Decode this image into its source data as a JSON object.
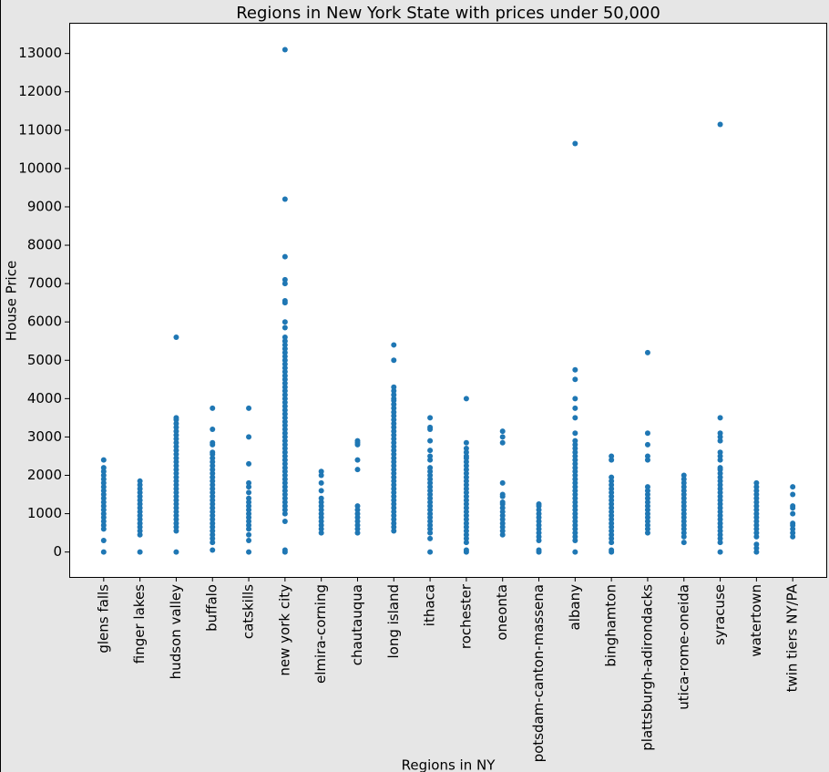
{
  "chart_data": {
    "type": "scatter",
    "title": "Regions in New York State with prices under 50,000",
    "x_label": "Regions in NY",
    "y_label": "House Price",
    "color": "#1f77b4",
    "categories": [
      "glens falls",
      "finger lakes",
      "hudson valley",
      "buffalo",
      "catskills",
      "new york city",
      "elmira-corning",
      "chautauqua",
      "long island",
      "ithaca",
      "rochester",
      "oneonta",
      "potsdam-canton-massena",
      "albany",
      "binghamton",
      "plattsburgh-adirondacks",
      "utica-rome-oneida",
      "syracuse",
      "watertown",
      "twin tiers NY/PA"
    ],
    "values": [
      [
        0,
        300,
        600,
        700,
        800,
        900,
        1000,
        1100,
        1200,
        1300,
        1400,
        1500,
        1600,
        1700,
        1800,
        1900,
        2000,
        2100,
        2200,
        2400
      ],
      [
        0,
        450,
        550,
        650,
        750,
        850,
        950,
        1050,
        1150,
        1250,
        1350,
        1450,
        1550,
        1650,
        1750,
        1850
      ],
      [
        0,
        550,
        650,
        750,
        850,
        950,
        1050,
        1150,
        1250,
        1350,
        1450,
        1550,
        1650,
        1750,
        1850,
        1950,
        2050,
        2150,
        2250,
        2350,
        2450,
        2550,
        2650,
        2750,
        2850,
        2950,
        3050,
        3150,
        3250,
        3350,
        3450,
        3500,
        5600
      ],
      [
        50,
        250,
        350,
        450,
        550,
        650,
        750,
        850,
        950,
        1050,
        1150,
        1250,
        1350,
        1450,
        1550,
        1650,
        1750,
        1850,
        1950,
        2050,
        2150,
        2250,
        2350,
        2450,
        2550,
        2600,
        2800,
        2850,
        3200,
        3750
      ],
      [
        0,
        300,
        450,
        600,
        700,
        800,
        900,
        1000,
        1100,
        1200,
        1300,
        1400,
        1550,
        1700,
        1800,
        2300,
        3000,
        3750
      ],
      [
        0,
        50,
        800,
        1000,
        1100,
        1200,
        1300,
        1400,
        1500,
        1600,
        1700,
        1800,
        1900,
        2000,
        2100,
        2200,
        2300,
        2400,
        2500,
        2600,
        2700,
        2800,
        2900,
        3000,
        3100,
        3200,
        3300,
        3400,
        3500,
        3600,
        3700,
        3800,
        3900,
        4000,
        4100,
        4200,
        4300,
        4400,
        4500,
        4600,
        4700,
        4800,
        4900,
        5000,
        5100,
        5200,
        5300,
        5400,
        5500,
        5600,
        5850,
        6000,
        6500,
        6550,
        7000,
        7100,
        7700,
        9200,
        13100
      ],
      [
        500,
        600,
        700,
        800,
        900,
        1000,
        1100,
        1200,
        1300,
        1400,
        1600,
        1800,
        2000,
        2100
      ],
      [
        500,
        600,
        700,
        800,
        900,
        1000,
        1100,
        1200,
        2150,
        2400,
        2800,
        2850,
        2900
      ],
      [
        550,
        650,
        750,
        850,
        950,
        1050,
        1150,
        1250,
        1350,
        1450,
        1550,
        1650,
        1750,
        1850,
        1950,
        2050,
        2150,
        2250,
        2350,
        2450,
        2550,
        2650,
        2750,
        2850,
        2950,
        3050,
        3150,
        3250,
        3350,
        3450,
        3550,
        3650,
        3750,
        3850,
        3950,
        4000,
        4100,
        4200,
        4300,
        5000,
        5400
      ],
      [
        0,
        350,
        500,
        600,
        700,
        800,
        900,
        1000,
        1100,
        1200,
        1300,
        1400,
        1500,
        1600,
        1700,
        1800,
        1900,
        2000,
        2100,
        2200,
        2400,
        2500,
        2650,
        2900,
        3200,
        3250,
        3500
      ],
      [
        0,
        50,
        250,
        350,
        450,
        550,
        650,
        750,
        850,
        950,
        1050,
        1150,
        1250,
        1350,
        1450,
        1550,
        1650,
        1750,
        1850,
        1950,
        2050,
        2150,
        2250,
        2350,
        2450,
        2500,
        2600,
        2700,
        2850,
        4000
      ],
      [
        450,
        550,
        650,
        750,
        850,
        950,
        1050,
        1150,
        1250,
        1300,
        1450,
        1500,
        1800,
        2850,
        3000,
        3150
      ],
      [
        0,
        50,
        300,
        400,
        500,
        600,
        700,
        800,
        900,
        1000,
        1100,
        1200,
        1250
      ],
      [
        0,
        300,
        400,
        500,
        600,
        700,
        800,
        900,
        1000,
        1100,
        1200,
        1300,
        1400,
        1500,
        1600,
        1700,
        1800,
        1900,
        2000,
        2100,
        2200,
        2300,
        2400,
        2500,
        2600,
        2700,
        2800,
        2900,
        3100,
        3500,
        3750,
        4000,
        4500,
        4750,
        10650
      ],
      [
        0,
        50,
        250,
        350,
        450,
        550,
        650,
        750,
        850,
        950,
        1050,
        1150,
        1250,
        1350,
        1450,
        1550,
        1650,
        1750,
        1850,
        1950,
        2400,
        2500
      ],
      [
        500,
        600,
        700,
        800,
        900,
        1000,
        1100,
        1200,
        1300,
        1400,
        1500,
        1600,
        1700,
        2400,
        2500,
        2800,
        3100,
        5200
      ],
      [
        250,
        400,
        500,
        600,
        700,
        800,
        900,
        1000,
        1100,
        1200,
        1300,
        1400,
        1500,
        1600,
        1700,
        1800,
        1900,
        2000
      ],
      [
        0,
        250,
        350,
        450,
        550,
        650,
        750,
        850,
        950,
        1050,
        1150,
        1250,
        1350,
        1450,
        1550,
        1650,
        1750,
        1850,
        1950,
        2050,
        2150,
        2200,
        2400,
        2500,
        2600,
        2900,
        3000,
        3100,
        3500,
        11150
      ],
      [
        0,
        100,
        200,
        400,
        500,
        600,
        700,
        800,
        900,
        1000,
        1100,
        1200,
        1300,
        1400,
        1500,
        1600,
        1700,
        1800
      ],
      [
        400,
        500,
        600,
        700,
        750,
        1000,
        1150,
        1200,
        1500,
        1700
      ]
    ],
    "ylim": [
      -650,
      13800
    ],
    "yticks": [
      0,
      1000,
      2000,
      3000,
      4000,
      5000,
      6000,
      7000,
      8000,
      9000,
      10000,
      11000,
      12000,
      13000
    ]
  }
}
